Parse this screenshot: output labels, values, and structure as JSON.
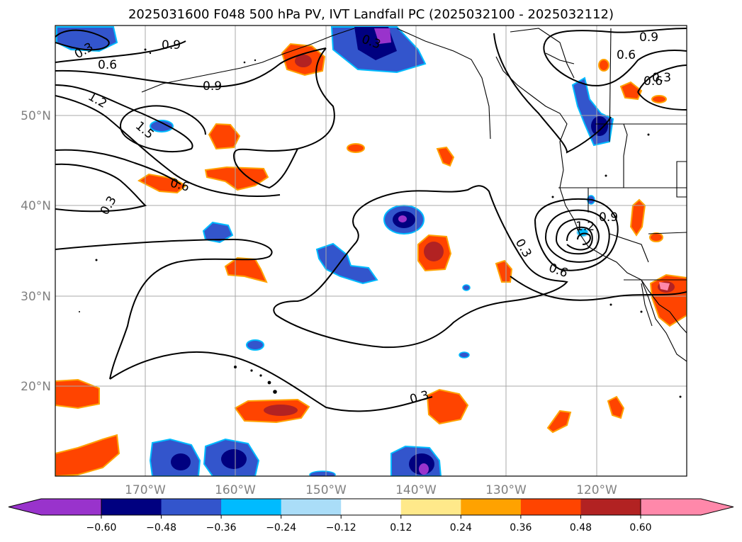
{
  "title": "2025031600 F048 500 hPa PV, IVT Landfall PC (2025032100 - 2025032112)",
  "map": {
    "lat_labels": [
      "50°N",
      "40°N",
      "30°N",
      "20°N"
    ],
    "lon_labels": [
      "170°W",
      "160°W",
      "150°W",
      "140°W",
      "130°W",
      "120°W"
    ],
    "contour_labels": [
      "0.3",
      "0.6",
      "0.9",
      "1.2",
      "1.5",
      "0.3",
      "0.6",
      "0.9",
      "0.3",
      "0.6",
      "0.9",
      "0.9",
      "1.2",
      "0.3",
      "0.6",
      "0.3",
      "0.6",
      "0.3"
    ]
  },
  "colorbar": {
    "tick_labels": [
      "−0.60",
      "−0.48",
      "−0.36",
      "−0.24",
      "−0.12",
      "0.12",
      "0.24",
      "0.36",
      "0.48",
      "0.60"
    ],
    "colors": [
      "#9933cc",
      "#000080",
      "#3355cc",
      "#00bbff",
      "#aaddf8",
      "#ffffff",
      "#ffe98a",
      "#ffa200",
      "#ff4400",
      "#b22222",
      "#ff88aa"
    ]
  }
}
